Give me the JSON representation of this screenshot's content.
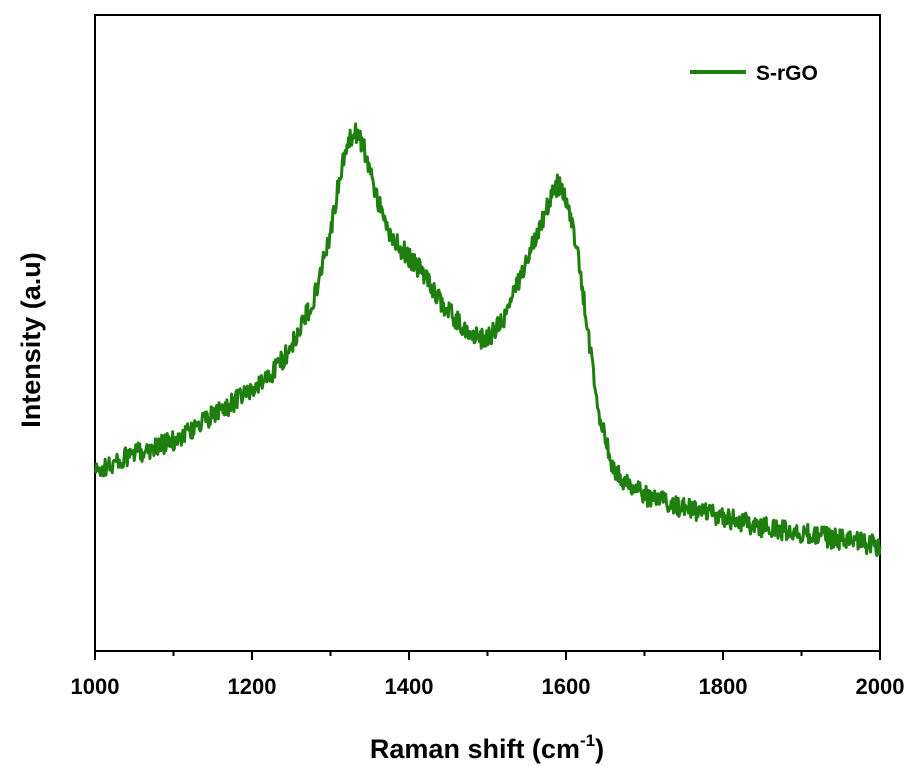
{
  "chart_data": {
    "type": "line",
    "xlabel": "Raman shift (cm",
    "xlabel_sup": "-1",
    "xlabel_end": ")",
    "ylabel": "Intensity (a.u)",
    "xlim": [
      1000,
      2000
    ],
    "ylim": [
      0,
      100
    ],
    "x_ticks": [
      "1000",
      "1200",
      "1400",
      "1600",
      "1800",
      "2000"
    ],
    "x_tick_values": [
      1000,
      1200,
      1400,
      1600,
      1800,
      2000
    ],
    "y_ticks_shown": false,
    "grid": false,
    "legend_position": "top-right",
    "series": [
      {
        "name": "S-rGO",
        "color": "#1e7f0e",
        "noise": 1.6,
        "points": [
          [
            1000,
            28
          ],
          [
            1050,
            31
          ],
          [
            1100,
            33
          ],
          [
            1150,
            37
          ],
          [
            1200,
            41
          ],
          [
            1220,
            43
          ],
          [
            1240,
            46
          ],
          [
            1260,
            50
          ],
          [
            1280,
            56
          ],
          [
            1300,
            66
          ],
          [
            1310,
            73
          ],
          [
            1320,
            79
          ],
          [
            1330,
            82
          ],
          [
            1340,
            80
          ],
          [
            1350,
            76
          ],
          [
            1360,
            71
          ],
          [
            1370,
            67
          ],
          [
            1380,
            64.5
          ],
          [
            1400,
            62
          ],
          [
            1420,
            59
          ],
          [
            1440,
            55
          ],
          [
            1460,
            52
          ],
          [
            1480,
            49.5
          ],
          [
            1500,
            49
          ],
          [
            1520,
            52
          ],
          [
            1540,
            58
          ],
          [
            1560,
            65
          ],
          [
            1580,
            71
          ],
          [
            1590,
            73.5
          ],
          [
            1600,
            71
          ],
          [
            1610,
            66
          ],
          [
            1620,
            58
          ],
          [
            1630,
            48
          ],
          [
            1640,
            39
          ],
          [
            1650,
            33
          ],
          [
            1660,
            29
          ],
          [
            1680,
            26
          ],
          [
            1700,
            24.5
          ],
          [
            1750,
            22.5
          ],
          [
            1800,
            21
          ],
          [
            1850,
            19.5
          ],
          [
            1900,
            18.5
          ],
          [
            1950,
            17.5
          ],
          [
            2000,
            16.5
          ]
        ]
      }
    ]
  }
}
